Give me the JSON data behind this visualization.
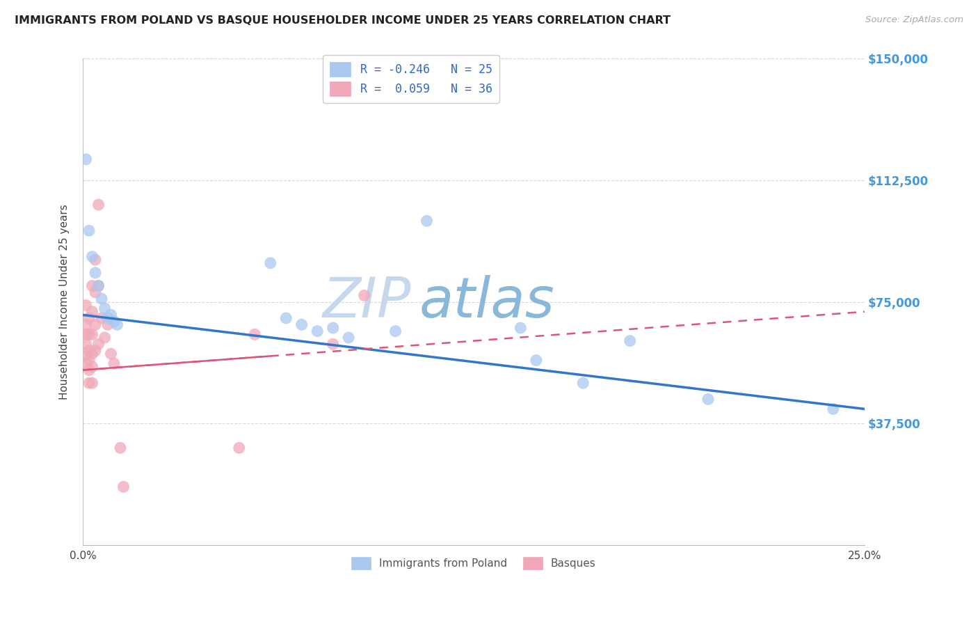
{
  "title": "IMMIGRANTS FROM POLAND VS BASQUE HOUSEHOLDER INCOME UNDER 25 YEARS CORRELATION CHART",
  "source": "Source: ZipAtlas.com",
  "ylabel": "Householder Income Under 25 years",
  "xlim": [
    0,
    0.25
  ],
  "ylim": [
    0,
    150000
  ],
  "yticks": [
    0,
    37500,
    75000,
    112500,
    150000
  ],
  "ytick_labels": [
    "",
    "$37,500",
    "$75,000",
    "$112,500",
    "$150,000"
  ],
  "xticks": [
    0.0,
    0.05,
    0.1,
    0.15,
    0.2,
    0.25
  ],
  "xtick_labels": [
    "0.0%",
    "",
    "",
    "",
    "",
    "25.0%"
  ],
  "background_color": "#ffffff",
  "grid_color": "#d8d8d8",
  "watermark_zip": "ZIP",
  "watermark_atlas": "atlas",
  "color_poland": "#a8c8f0",
  "color_basque": "#f0a8b8",
  "color_poland_line": "#3377cc",
  "color_basque_line": "#dd5577",
  "color_right_labels": "#4499dd",
  "poland_scatter": [
    [
      0.001,
      119000
    ],
    [
      0.002,
      97000
    ],
    [
      0.003,
      89000
    ],
    [
      0.004,
      84000
    ],
    [
      0.005,
      80000
    ],
    [
      0.006,
      76000
    ],
    [
      0.007,
      73000
    ],
    [
      0.008,
      70000
    ],
    [
      0.009,
      71000
    ],
    [
      0.01,
      69000
    ],
    [
      0.011,
      68000
    ],
    [
      0.06,
      87000
    ],
    [
      0.065,
      70000
    ],
    [
      0.07,
      68000
    ],
    [
      0.075,
      66000
    ],
    [
      0.08,
      67000
    ],
    [
      0.085,
      64000
    ],
    [
      0.1,
      66000
    ],
    [
      0.11,
      100000
    ],
    [
      0.14,
      67000
    ],
    [
      0.145,
      57000
    ],
    [
      0.16,
      50000
    ],
    [
      0.175,
      63000
    ],
    [
      0.2,
      45000
    ],
    [
      0.24,
      42000
    ]
  ],
  "basque_scatter": [
    [
      0.001,
      74000
    ],
    [
      0.001,
      68000
    ],
    [
      0.001,
      65000
    ],
    [
      0.001,
      62000
    ],
    [
      0.001,
      59000
    ],
    [
      0.001,
      56000
    ],
    [
      0.002,
      70000
    ],
    [
      0.002,
      65000
    ],
    [
      0.002,
      60000
    ],
    [
      0.002,
      57000
    ],
    [
      0.002,
      54000
    ],
    [
      0.002,
      50000
    ],
    [
      0.003,
      80000
    ],
    [
      0.003,
      72000
    ],
    [
      0.003,
      65000
    ],
    [
      0.003,
      59000
    ],
    [
      0.003,
      55000
    ],
    [
      0.003,
      50000
    ],
    [
      0.004,
      88000
    ],
    [
      0.004,
      78000
    ],
    [
      0.004,
      68000
    ],
    [
      0.004,
      60000
    ],
    [
      0.005,
      105000
    ],
    [
      0.005,
      80000
    ],
    [
      0.005,
      62000
    ],
    [
      0.006,
      70000
    ],
    [
      0.007,
      64000
    ],
    [
      0.008,
      68000
    ],
    [
      0.009,
      59000
    ],
    [
      0.01,
      56000
    ],
    [
      0.012,
      30000
    ],
    [
      0.013,
      18000
    ],
    [
      0.05,
      30000
    ],
    [
      0.055,
      65000
    ],
    [
      0.08,
      62000
    ],
    [
      0.09,
      77000
    ]
  ],
  "poland_line_x": [
    0.0,
    0.25
  ],
  "poland_line_y": [
    71000,
    42000
  ],
  "basque_line_x": [
    0.0,
    0.25
  ],
  "basque_line_y": [
    54000,
    72000
  ]
}
